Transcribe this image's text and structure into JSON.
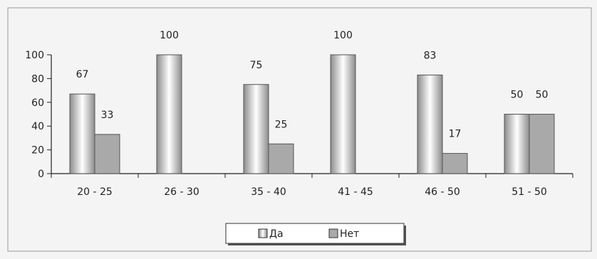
{
  "chart_data": {
    "type": "bar",
    "categories": [
      "20 - 25",
      "26 - 30",
      "35 - 40",
      "41 - 45",
      "46 - 50",
      "51 - 50"
    ],
    "series": [
      {
        "name": "Да",
        "values": [
          67,
          100,
          75,
          100,
          83,
          50
        ]
      },
      {
        "name": "Нет",
        "values": [
          33,
          0,
          25,
          0,
          17,
          50
        ]
      }
    ],
    "data_labels": [
      [
        "67",
        "100",
        "75",
        "100",
        "83",
        "50"
      ],
      [
        "33",
        "",
        "25",
        "",
        "17",
        "50"
      ]
    ],
    "yticks": [
      "0",
      "20",
      "40",
      "60",
      "80",
      "100"
    ],
    "ylim": [
      0,
      100
    ],
    "grid": false,
    "legend": "bottom-center",
    "title": "",
    "xlabel": "",
    "ylabel": ""
  },
  "colors": {
    "background": "#f4f4f4",
    "frame": "#9a9a9a",
    "series_1_edge": "#8c8c8c",
    "series_1_center": "#ffffff",
    "series_2_fill": "#a9a9a9",
    "axis": "#222222"
  }
}
